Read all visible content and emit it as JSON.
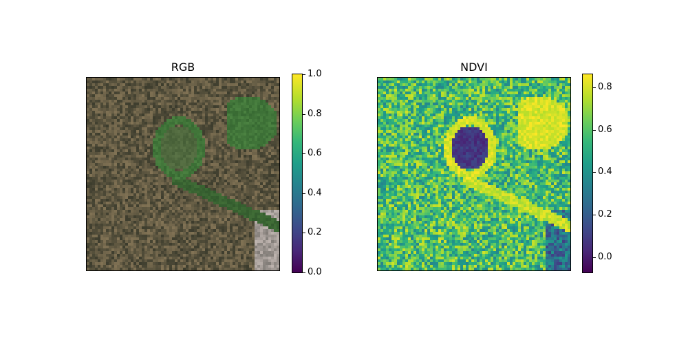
{
  "panels": [
    {
      "title": "RGB",
      "colorbar": {
        "ticks": [
          "0.0",
          "0.2",
          "0.4",
          "0.6",
          "0.8",
          "1.0"
        ],
        "tick_values": [
          0.0,
          0.2,
          0.4,
          0.6,
          0.8,
          1.0
        ],
        "range": [
          0.0,
          1.0
        ]
      }
    },
    {
      "title": "NDVI",
      "colormap": "viridis",
      "colorbar": {
        "ticks": [
          "0.0",
          "0.2",
          "0.4",
          "0.6",
          "0.8"
        ],
        "tick_values": [
          0.0,
          0.2,
          0.4,
          0.6,
          0.8
        ],
        "range": [
          -0.07,
          0.86
        ]
      }
    }
  ],
  "colors": {
    "viridis_low": "#440154",
    "viridis_mid": "#21918c",
    "viridis_high": "#fde725"
  }
}
